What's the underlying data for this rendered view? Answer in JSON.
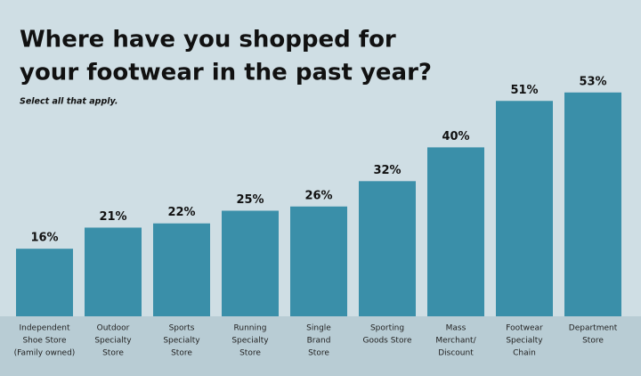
{
  "chart_data": {
    "type": "bar",
    "title": [
      "Where have you shopped for",
      "your footwear in the past year?"
    ],
    "subtitle": "Select all that apply.",
    "categories": [
      [
        "Independent",
        "Shoe Store",
        "(Family owned)"
      ],
      [
        "Outdoor",
        "Specialty",
        "Store"
      ],
      [
        "Sports",
        "Specialty",
        "Store"
      ],
      [
        "Running",
        "Specialty",
        "Store"
      ],
      [
        "Single",
        "Brand",
        "Store"
      ],
      [
        "Sporting",
        "Goods Store"
      ],
      [
        "Mass",
        "Merchant/",
        "Discount"
      ],
      [
        "Footwear",
        "Specialty",
        "Chain"
      ],
      [
        "Department",
        "Store"
      ]
    ],
    "values": [
      16,
      21,
      22,
      25,
      26,
      32,
      40,
      51,
      53
    ],
    "value_labels": [
      "16%",
      "21%",
      "22%",
      "25%",
      "26%",
      "32%",
      "40%",
      "51%",
      "53%"
    ],
    "color": "#3a8fa9"
  }
}
